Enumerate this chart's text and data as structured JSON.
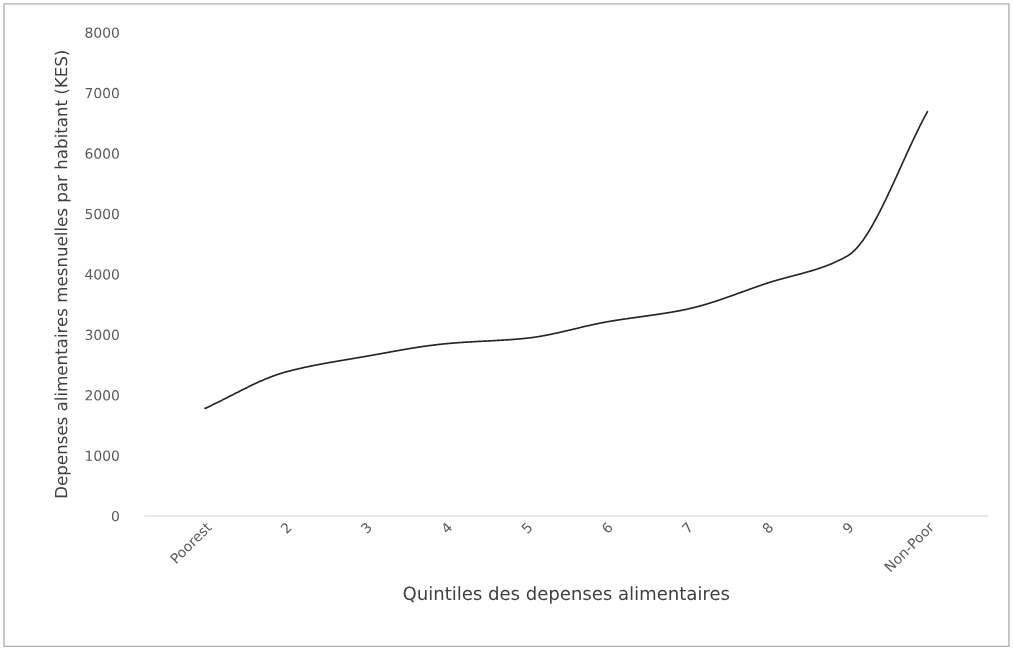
{
  "chart_data": {
    "type": "line",
    "xlabel": "Quintiles des depenses alimentaires",
    "ylabel": "Depenses alimentaires mesnuelles par habitant (KES)",
    "categories": [
      "Poorest",
      "2",
      "3",
      "4",
      "5",
      "6",
      "7",
      "8",
      "9",
      "Non-Poor"
    ],
    "series": [
      {
        "color": "#262626",
        "values": [
          1780,
          2380,
          2640,
          2850,
          2940,
          3210,
          3420,
          3850,
          4300,
          6690
        ]
      }
    ],
    "ylim": [
      0,
      8000
    ],
    "yticks": [
      0,
      1000,
      2000,
      3000,
      4000,
      5000,
      6000,
      7000,
      8000
    ],
    "grid": false,
    "legend": false,
    "marker": "none",
    "line_style": "solid"
  }
}
